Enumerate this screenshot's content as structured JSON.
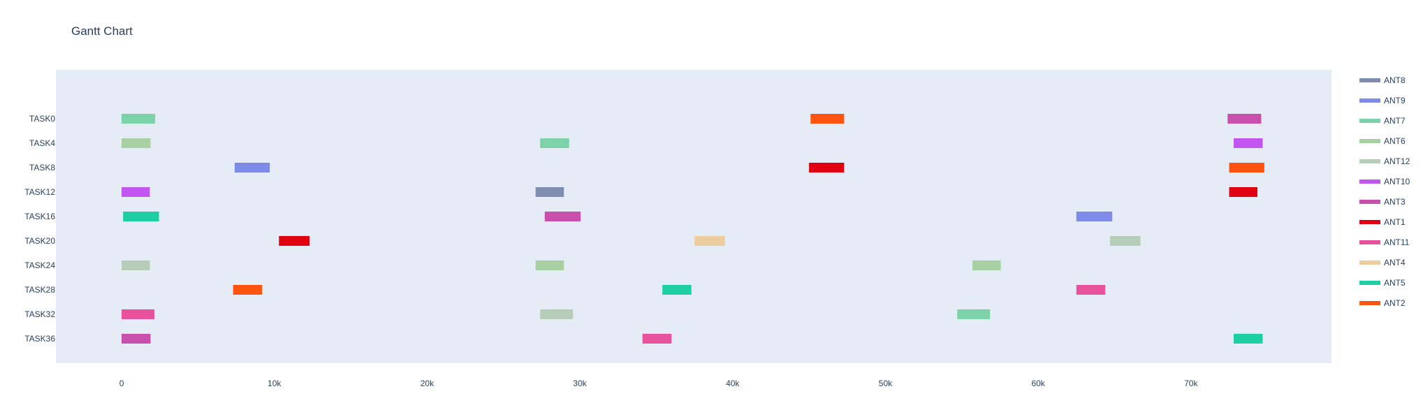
{
  "chart_data": {
    "type": "gantt",
    "title": "Gantt Chart",
    "xlabel": "",
    "ylabel": "",
    "xlim": [
      -4300,
      79200
    ],
    "x_ticks": [
      {
        "value": 0,
        "label": "0"
      },
      {
        "value": 10000,
        "label": "10k"
      },
      {
        "value": 20000,
        "label": "20k"
      },
      {
        "value": 30000,
        "label": "30k"
      },
      {
        "value": 40000,
        "label": "40k"
      },
      {
        "value": 50000,
        "label": "50k"
      },
      {
        "value": 60000,
        "label": "60k"
      },
      {
        "value": 70000,
        "label": "70k"
      }
    ],
    "tasks": [
      "TASK0",
      "TASK4",
      "TASK8",
      "TASK12",
      "TASK16",
      "TASK20",
      "TASK24",
      "TASK28",
      "TASK32",
      "TASK36"
    ],
    "grid": false,
    "legend_position": "right",
    "background_color": "#e5ecf6",
    "series": [
      {
        "name": "ANT8",
        "color": "#7f8eb0"
      },
      {
        "name": "ANT9",
        "color": "#7f8be9"
      },
      {
        "name": "ANT7",
        "color": "#7dd3a9"
      },
      {
        "name": "ANT6",
        "color": "#a8d1a3"
      },
      {
        "name": "ANT12",
        "color": "#b6cdb7"
      },
      {
        "name": "ANT10",
        "color": "#c356f0"
      },
      {
        "name": "ANT3",
        "color": "#c94fac"
      },
      {
        "name": "ANT1",
        "color": "#e0000f"
      },
      {
        "name": "ANT11",
        "color": "#e8519c"
      },
      {
        "name": "ANT4",
        "color": "#eccd9f"
      },
      {
        "name": "ANT5",
        "color": "#1dcfa3"
      },
      {
        "name": "ANT2",
        "color": "#ff5310"
      }
    ],
    "bars": [
      {
        "task": "TASK0",
        "series": "ANT7",
        "start": 0,
        "end": 2200
      },
      {
        "task": "TASK0",
        "series": "ANT2",
        "start": 45100,
        "end": 47300
      },
      {
        "task": "TASK0",
        "series": "ANT3",
        "start": 72400,
        "end": 74600
      },
      {
        "task": "TASK4",
        "series": "ANT6",
        "start": 0,
        "end": 1900
      },
      {
        "task": "TASK4",
        "series": "ANT7",
        "start": 27400,
        "end": 29300
      },
      {
        "task": "TASK4",
        "series": "ANT10",
        "start": 72800,
        "end": 74700
      },
      {
        "task": "TASK8",
        "series": "ANT9",
        "start": 7400,
        "end": 9700
      },
      {
        "task": "TASK8",
        "series": "ANT1",
        "start": 45000,
        "end": 47300
      },
      {
        "task": "TASK8",
        "series": "ANT2",
        "start": 72500,
        "end": 74800
      },
      {
        "task": "TASK12",
        "series": "ANT10",
        "start": 0,
        "end": 1850
      },
      {
        "task": "TASK12",
        "series": "ANT8",
        "start": 27100,
        "end": 28950
      },
      {
        "task": "TASK12",
        "series": "ANT1",
        "start": 72500,
        "end": 74350
      },
      {
        "task": "TASK16",
        "series": "ANT5",
        "start": 100,
        "end": 2450
      },
      {
        "task": "TASK16",
        "series": "ANT3",
        "start": 27700,
        "end": 30050
      },
      {
        "task": "TASK16",
        "series": "ANT9",
        "start": 62500,
        "end": 64850
      },
      {
        "task": "TASK20",
        "series": "ANT1",
        "start": 10300,
        "end": 12300
      },
      {
        "task": "TASK20",
        "series": "ANT4",
        "start": 37500,
        "end": 39500
      },
      {
        "task": "TASK20",
        "series": "ANT12",
        "start": 64700,
        "end": 66700
      },
      {
        "task": "TASK24",
        "series": "ANT12",
        "start": 0,
        "end": 1850
      },
      {
        "task": "TASK24",
        "series": "ANT6",
        "start": 27100,
        "end": 28950
      },
      {
        "task": "TASK24",
        "series": "ANT6",
        "start": 55700,
        "end": 57550
      },
      {
        "task": "TASK28",
        "series": "ANT2",
        "start": 7300,
        "end": 9200
      },
      {
        "task": "TASK28",
        "series": "ANT5",
        "start": 35400,
        "end": 37300
      },
      {
        "task": "TASK28",
        "series": "ANT11",
        "start": 62500,
        "end": 64400
      },
      {
        "task": "TASK32",
        "series": "ANT11",
        "start": 0,
        "end": 2150
      },
      {
        "task": "TASK32",
        "series": "ANT12",
        "start": 27400,
        "end": 29550
      },
      {
        "task": "TASK32",
        "series": "ANT7",
        "start": 54700,
        "end": 56850
      },
      {
        "task": "TASK36",
        "series": "ANT3",
        "start": 0,
        "end": 1900
      },
      {
        "task": "TASK36",
        "series": "ANT11",
        "start": 34100,
        "end": 36000
      },
      {
        "task": "TASK36",
        "series": "ANT5",
        "start": 72800,
        "end": 74700
      }
    ]
  }
}
